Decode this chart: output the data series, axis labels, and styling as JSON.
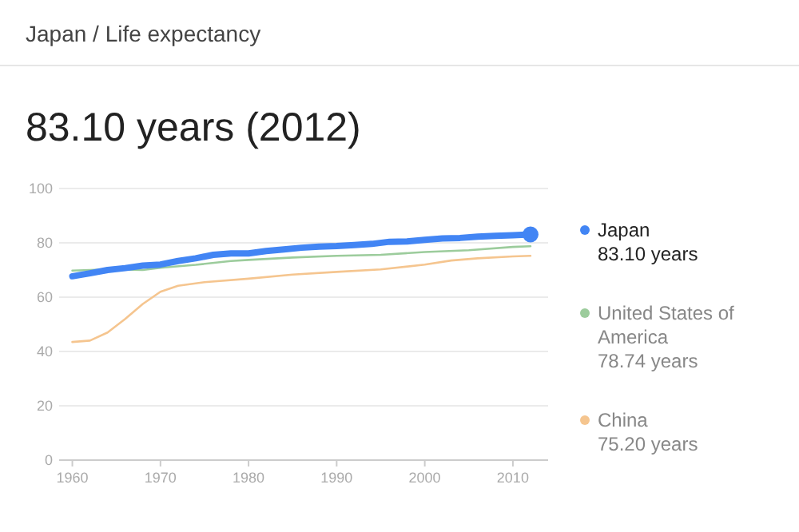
{
  "chart_data": {
    "type": "line",
    "title": "Japan / Life expectancy",
    "subtitle": "83.10 years (2012)",
    "xlim": [
      1958.5,
      2014
    ],
    "xticks": [
      1960,
      1970,
      1980,
      1990,
      2000,
      2010
    ],
    "ylim": [
      0,
      100
    ],
    "yticks": [
      0,
      20,
      40,
      60,
      80,
      100
    ],
    "grid": "y",
    "legend": "right",
    "annotations": [
      "83.10 years",
      "78.74 years",
      "75.20 years"
    ],
    "series": [
      {
        "name": "Japan",
        "color": "#4285f4",
        "x": [
          1960,
          1962,
          1964,
          1966,
          1968,
          1970,
          1972,
          1974,
          1976,
          1978,
          1980,
          1982,
          1984,
          1986,
          1988,
          1990,
          1992,
          1994,
          1996,
          1998,
          2000,
          2002,
          2004,
          2006,
          2008,
          2010,
          2012
        ],
        "values": [
          67.7,
          68.8,
          70,
          70.7,
          71.6,
          72,
          73.3,
          74.3,
          75.6,
          76.1,
          76.1,
          77,
          77.6,
          78.2,
          78.6,
          78.8,
          79.2,
          79.6,
          80.4,
          80.5,
          81.1,
          81.6,
          81.8,
          82.3,
          82.6,
          82.8,
          83.1
        ]
      },
      {
        "name": "United States of America",
        "color": "#9ccc9c",
        "x": [
          1960,
          1964,
          1968,
          1970,
          1974,
          1978,
          1980,
          1985,
          1990,
          1995,
          2000,
          2005,
          2010,
          2012
        ],
        "values": [
          69.8,
          70.2,
          70,
          70.8,
          71.9,
          73.3,
          73.7,
          74.6,
          75.2,
          75.6,
          76.6,
          77.3,
          78.5,
          78.74
        ]
      },
      {
        "name": "China",
        "color": "#f5c58f",
        "x": [
          1960,
          1962,
          1964,
          1966,
          1968,
          1970,
          1972,
          1975,
          1980,
          1985,
          1990,
          1995,
          2000,
          2003,
          2006,
          2010,
          2012
        ],
        "values": [
          43.5,
          44,
          47,
          52,
          57.5,
          62,
          64.2,
          65.5,
          66.8,
          68.3,
          69.3,
          70.2,
          72,
          73.5,
          74.3,
          75,
          75.2
        ]
      },
      {
        "type": "scatter",
        "marker": "circle",
        "color": "#4285f4",
        "x": [
          2012
        ],
        "values": [
          83.1
        ]
      }
    ]
  }
}
